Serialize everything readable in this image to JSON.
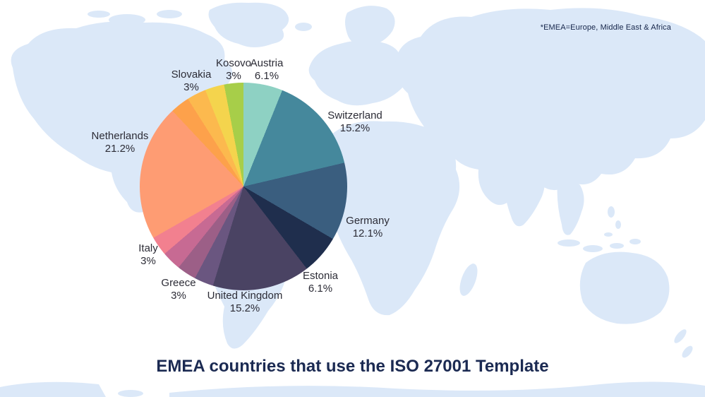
{
  "title": "EMEA countries that use the ISO 27001 Template",
  "note": "*EMEA=Europe, Middle East & Africa",
  "map": {
    "land_color": "#dbe8f8",
    "background": "#ffffff"
  },
  "chart_data": {
    "type": "pie",
    "title": "EMEA countries that use the ISO 27001 Template",
    "direction": "clockwise",
    "start_angle_deg": 0,
    "legend_position": "outside-labels",
    "segments": [
      {
        "label": "Austria",
        "value": 6.1,
        "display": "6.1%",
        "color": "#8ed1c3"
      },
      {
        "label": "Switzerland",
        "value": 15.2,
        "display": "15.2%",
        "color": "#45889c"
      },
      {
        "label": "Germany",
        "value": 12.1,
        "display": "12.1%",
        "color": "#3a5e7f"
      },
      {
        "label": "Estonia",
        "value": 6.1,
        "display": "6.1%",
        "color": "#1f2e4d"
      },
      {
        "label": "United Kingdom",
        "value": 15.2,
        "display": "15.2%",
        "color": "#4a4363"
      },
      {
        "label": "Greece",
        "value": 3,
        "display": "3%",
        "color": "#6a5680"
      },
      {
        "label": "Italy",
        "value": 3,
        "display": "3%",
        "color": "#9c5f87"
      },
      {
        "label": "",
        "value": 3,
        "display": "",
        "color": "#c76a93"
      },
      {
        "label": "",
        "value": 3,
        "display": "",
        "color": "#f2808f"
      },
      {
        "label": "Netherlands",
        "value": 21.2,
        "display": "21.2%",
        "color": "#fe9c73"
      },
      {
        "label": "Slovakia",
        "value": 3,
        "display": "3%",
        "color": "#fda14b"
      },
      {
        "label": "",
        "value": 3,
        "display": "",
        "color": "#fcb94e"
      },
      {
        "label": "",
        "value": 3,
        "display": "",
        "color": "#f4d44d"
      },
      {
        "label": "Kosovo",
        "value": 3,
        "display": "3%",
        "color": "#a7ce49"
      }
    ]
  }
}
